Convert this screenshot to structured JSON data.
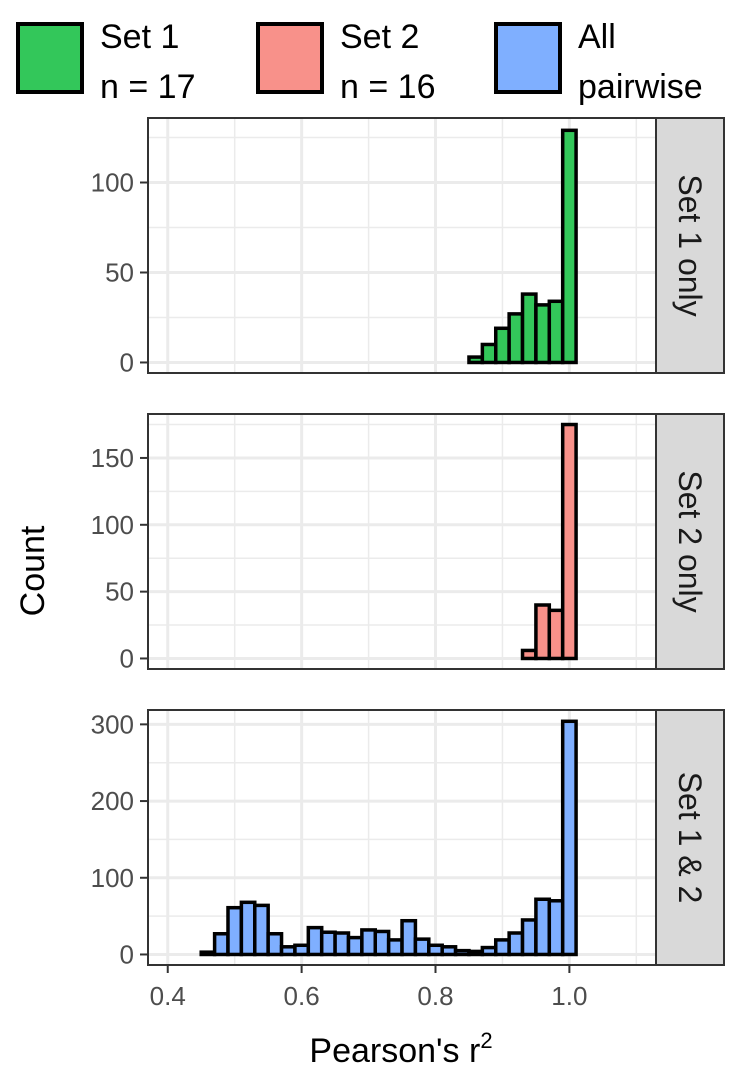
{
  "chart_data": {
    "type": "bar",
    "subtype": "faceted-histogram",
    "xlabel": "Pearson's r",
    "xlabel_superscript": "2",
    "ylabel": "Count",
    "xlim": [
      0.4,
      1.0
    ],
    "x_ticks": [
      0.4,
      0.6,
      0.8,
      1.0
    ],
    "x_tick_labels": [
      "0.4",
      "0.6",
      "0.8",
      "1.0"
    ],
    "bin_width": 0.02,
    "bin_centers": [
      0.42,
      0.44,
      0.46,
      0.48,
      0.5,
      0.52,
      0.54,
      0.56,
      0.58,
      0.6,
      0.62,
      0.64,
      0.66,
      0.68,
      0.7,
      0.72,
      0.74,
      0.76,
      0.78,
      0.8,
      0.82,
      0.84,
      0.86,
      0.88,
      0.9,
      0.92,
      0.94,
      0.96,
      0.98,
      1.0
    ],
    "grid": true,
    "legend_position": "top",
    "legend": [
      {
        "label_line1": "Set 1",
        "label_line2": "n = 17",
        "color": "#33c75a"
      },
      {
        "label_line1": "Set 2",
        "label_line2": "n = 16",
        "color": "#f8918a"
      },
      {
        "label_line1": "All",
        "label_line2": "pairwise",
        "color": "#7fafff"
      }
    ],
    "facets": [
      {
        "strip": "Set 1 only",
        "color": "#33c75a",
        "ylim": [
          0,
          130
        ],
        "y_ticks": [
          0,
          50,
          100
        ],
        "y_tick_labels": [
          "0",
          "50",
          "100"
        ],
        "values": [
          0,
          0,
          0,
          0,
          0,
          0,
          0,
          0,
          0,
          0,
          0,
          0,
          0,
          0,
          0,
          0,
          0,
          0,
          0,
          0,
          0,
          0,
          3,
          10,
          19,
          27,
          38,
          32,
          34,
          129
        ]
      },
      {
        "strip": "Set 2 only",
        "color": "#f8918a",
        "ylim": [
          0,
          175
        ],
        "y_ticks": [
          0,
          50,
          100,
          150
        ],
        "y_tick_labels": [
          "0",
          "50",
          "100",
          "150"
        ],
        "values": [
          0,
          0,
          0,
          0,
          0,
          0,
          0,
          0,
          0,
          0,
          0,
          0,
          0,
          0,
          0,
          0,
          0,
          0,
          0,
          0,
          0,
          0,
          0,
          0,
          0,
          0,
          6,
          40,
          36,
          175
        ]
      },
      {
        "strip": "Set 1 & 2",
        "color": "#7fafff",
        "ylim": [
          0,
          305
        ],
        "y_ticks": [
          0,
          100,
          200,
          300
        ],
        "y_tick_labels": [
          "0",
          "100",
          "200",
          "300"
        ],
        "values": [
          0,
          0,
          3,
          27,
          61,
          68,
          64,
          27,
          10,
          12,
          35,
          29,
          28,
          22,
          32,
          30,
          19,
          44,
          20,
          12,
          10,
          5,
          4,
          9,
          19,
          28,
          45,
          72,
          70,
          304
        ]
      }
    ]
  }
}
